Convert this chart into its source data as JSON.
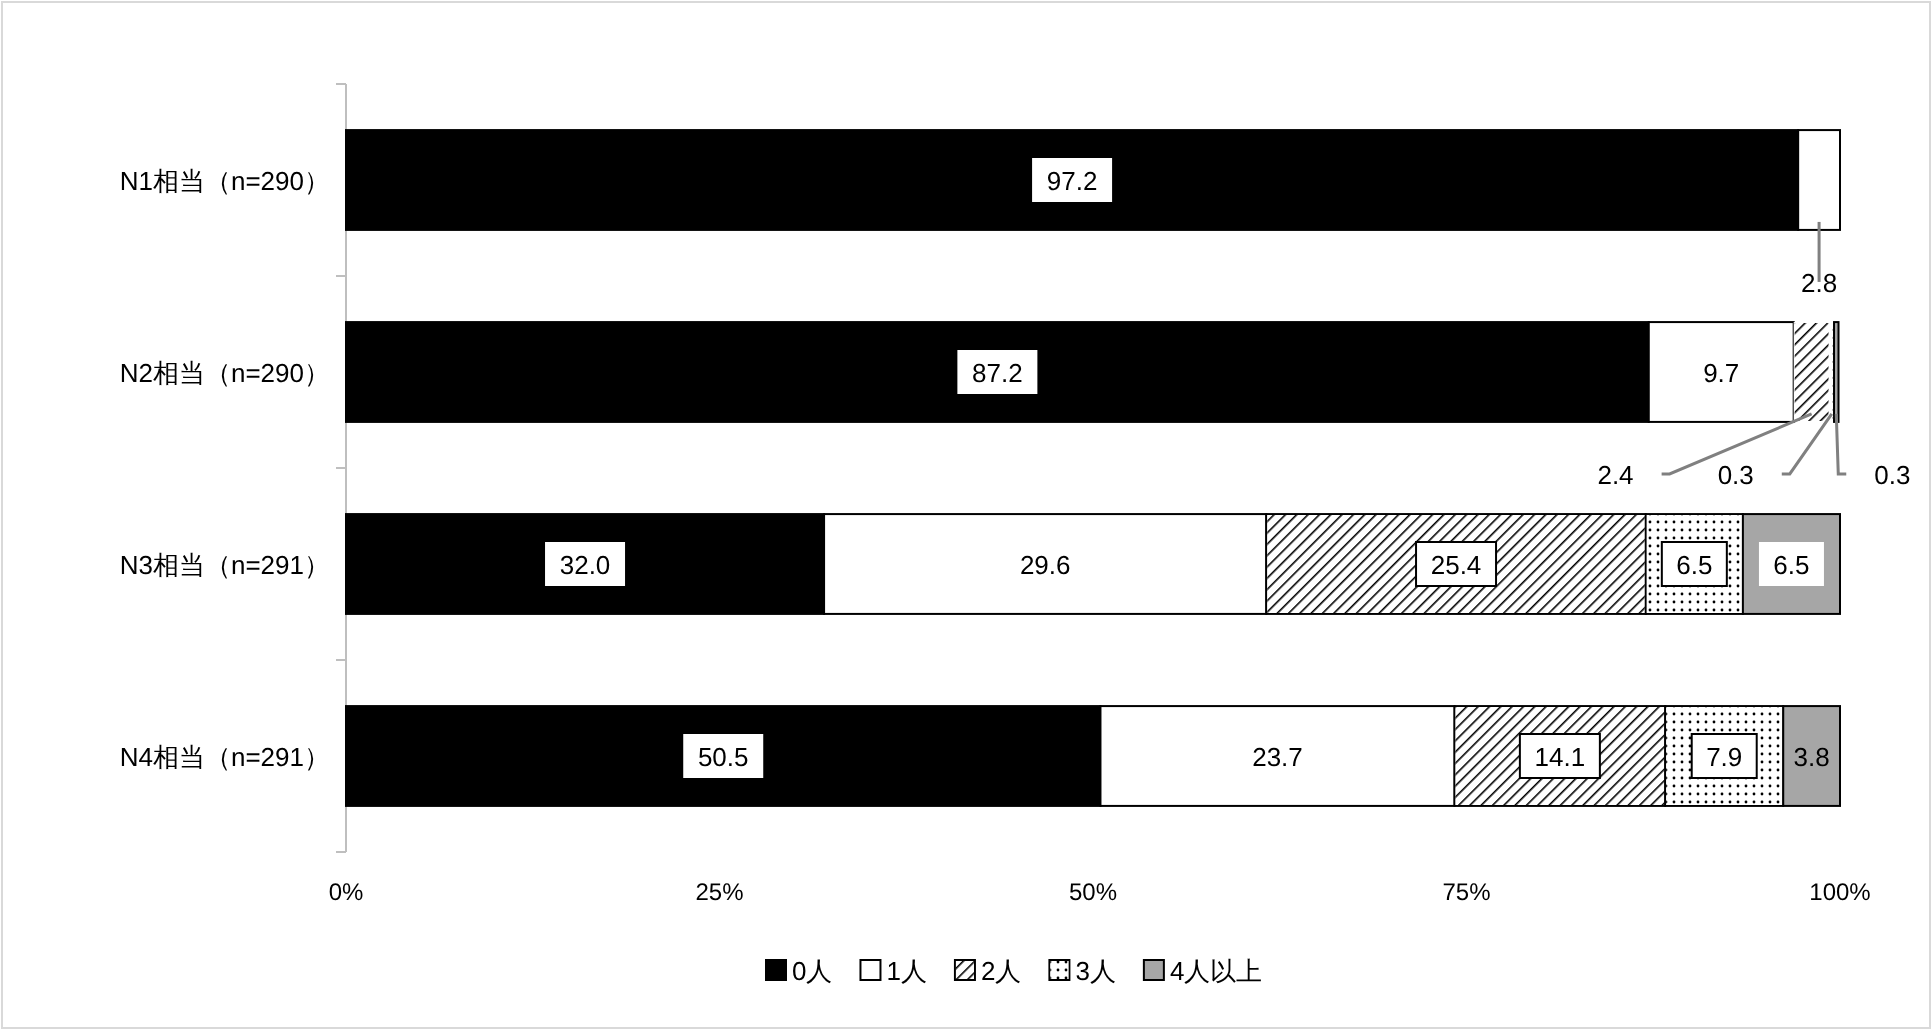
{
  "chart_data": {
    "type": "bar",
    "orientation": "horizontal",
    "stacked": true,
    "categories": [
      "N1相当（n=290）",
      "N2相当（n=290）",
      "N3相当（n=291）",
      "N4相当（n=291）"
    ],
    "series": [
      {
        "name": "0人",
        "color": "#000000",
        "values": [
          97.2,
          87.2,
          32.0,
          50.5
        ],
        "value_labels": [
          "97.2",
          "87.2",
          "32.0",
          "50.5"
        ]
      },
      {
        "name": "1人",
        "color": "#ffffff",
        "values": [
          2.8,
          9.7,
          29.6,
          23.7
        ],
        "value_labels": [
          "2.8",
          "9.7",
          "29.6",
          "23.7"
        ]
      },
      {
        "name": "2人",
        "color": "#ffffff",
        "values": [
          0,
          2.4,
          25.4,
          14.1
        ],
        "value_labels": [
          null,
          "2.4",
          "25.4",
          "14.1"
        ]
      },
      {
        "name": "3人",
        "color": "#ffffff",
        "values": [
          0,
          0.3,
          6.5,
          7.9
        ],
        "value_labels": [
          null,
          "0.3",
          "6.5",
          "7.9"
        ]
      },
      {
        "name": "4人以上",
        "color": "#a6a6a6",
        "values": [
          0,
          0.3,
          6.5,
          3.8
        ],
        "value_labels": [
          null,
          "0.3",
          "6.5",
          "3.8"
        ]
      }
    ],
    "xlim": [
      0,
      100
    ],
    "xticks": [
      {
        "value": 0,
        "label": "0%"
      },
      {
        "value": 25,
        "label": "25%"
      },
      {
        "value": 50,
        "label": "50%"
      },
      {
        "value": 75,
        "label": "75%"
      },
      {
        "value": 100,
        "label": "100%"
      }
    ],
    "legend": "bottom"
  }
}
